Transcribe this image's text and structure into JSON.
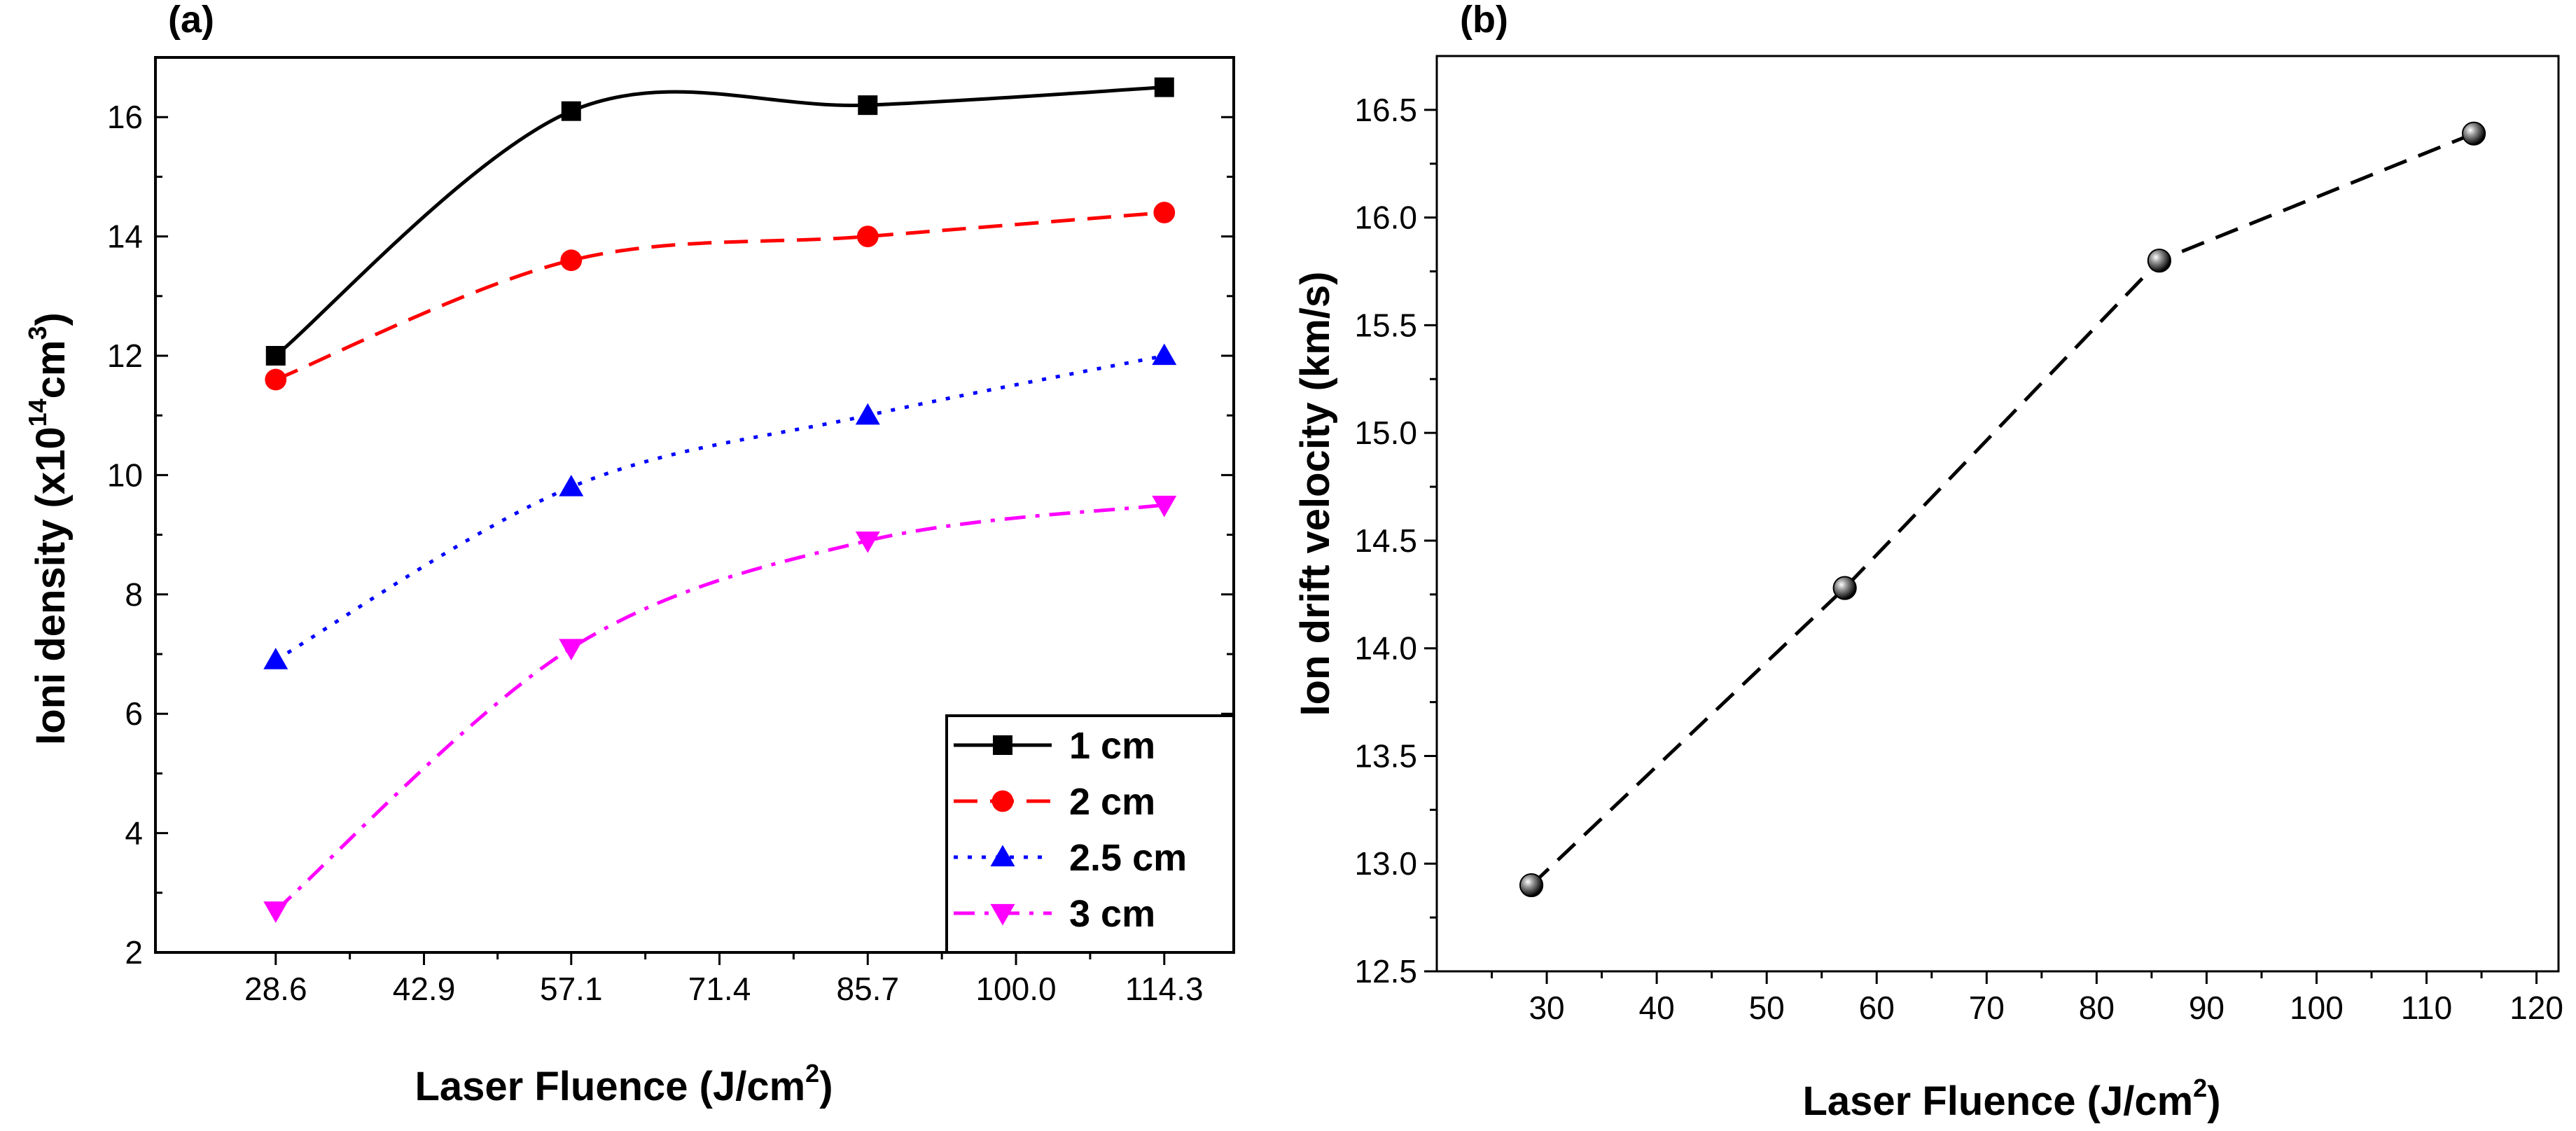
{
  "chart_data": [
    {
      "type": "line",
      "panel_label": "(a)",
      "xlabel": "Laser Fluence (J/cm",
      "xlabel_sup": "2",
      "xlabel_tail": ")",
      "ylabel": "Ioni density (x10",
      "ylabel_sup1": "14",
      "ylabel_mid": "cm",
      "ylabel_sup2": "3",
      "ylabel_tail": ")",
      "x": [
        28.6,
        57.1,
        85.7,
        114.3
      ],
      "xticks": [
        "28.6",
        "42.9",
        "57.1",
        "71.4",
        "85.7",
        "100.0",
        "114.3"
      ],
      "xtick_values": [
        28.6,
        42.9,
        57.1,
        71.4,
        85.7,
        100.0,
        114.3
      ],
      "xlim": [
        17,
        121
      ],
      "ylim": [
        2,
        17
      ],
      "yticks": [
        2,
        4,
        6,
        8,
        10,
        12,
        14,
        16
      ],
      "grid": false,
      "legend_position": "bottom-right",
      "series": [
        {
          "name": "1 cm",
          "values": [
            12.0,
            16.1,
            16.2,
            16.5
          ],
          "color": "#000000",
          "marker": "square",
          "dash": "solid"
        },
        {
          "name": "2 cm",
          "values": [
            11.6,
            13.6,
            14.0,
            14.4
          ],
          "color": "#ff0000",
          "marker": "circle",
          "dash": "dashed"
        },
        {
          "name": "2.5 cm",
          "values": [
            6.9,
            9.8,
            11.0,
            12.0
          ],
          "color": "#0000ff",
          "marker": "triangle-up",
          "dash": "dotted"
        },
        {
          "name": "3 cm",
          "values": [
            2.7,
            7.1,
            8.9,
            9.5
          ],
          "color": "#ff00ff",
          "marker": "triangle-down",
          "dash": "dash-dot"
        }
      ]
    },
    {
      "type": "line",
      "panel_label": "(b)",
      "xlabel": "Laser Fluence  (J/cm",
      "xlabel_sup": "2",
      "xlabel_tail": ")",
      "ylabel": "Ion drift velocity (km/s)",
      "x": [
        28.6,
        57.1,
        85.7,
        114.3
      ],
      "values": [
        12.9,
        14.28,
        15.8,
        16.39
      ],
      "color": "#000000",
      "marker": "sphere",
      "dash": "dashed",
      "xlim": [
        20,
        122
      ],
      "ylim": [
        12.5,
        16.75
      ],
      "xticks": [
        30,
        40,
        50,
        60,
        70,
        80,
        90,
        100,
        110,
        120
      ],
      "yticks": [
        "12.5",
        "13.0",
        "13.5",
        "14.0",
        "14.5",
        "15.0",
        "15.5",
        "16.0",
        "16.5"
      ],
      "ytick_values": [
        12.5,
        13.0,
        13.5,
        14.0,
        14.5,
        15.0,
        15.5,
        16.0,
        16.5
      ],
      "grid": false
    }
  ]
}
